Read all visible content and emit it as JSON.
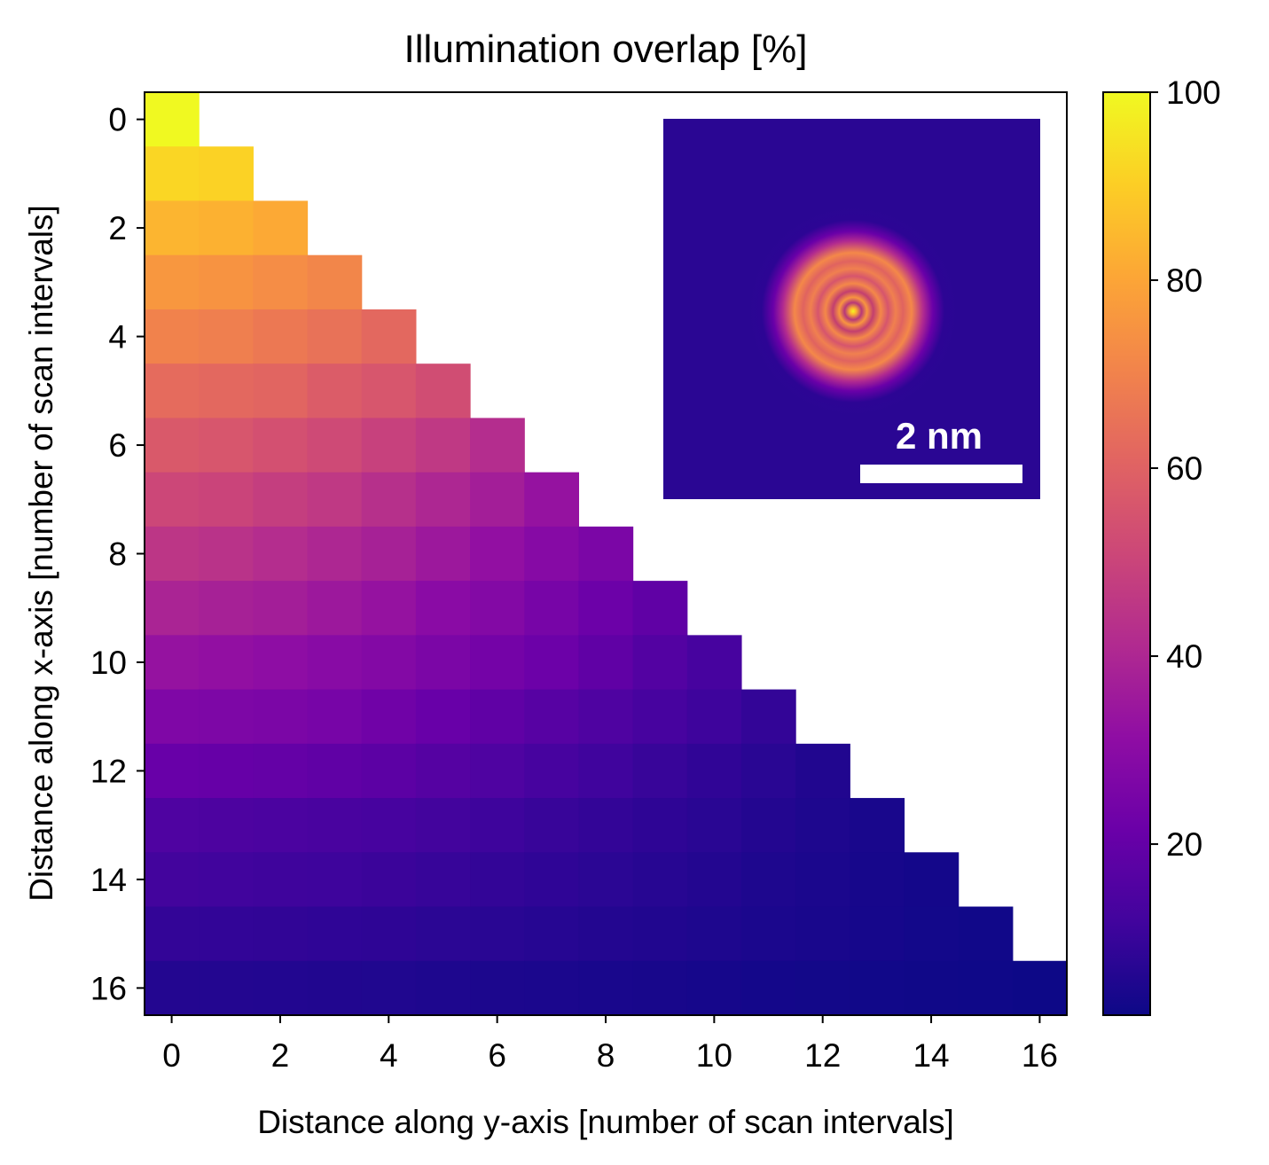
{
  "chart_data": {
    "type": "heatmap",
    "title": "Illumination overlap [%]",
    "xlabel": "Distance along y-axis [number of scan intervals]",
    "ylabel": "Distance along x-axis [number of scan intervals]",
    "x_range": [
      -0.5,
      16.5
    ],
    "y_range": [
      -0.5,
      16.5
    ],
    "y_inverted": true,
    "x_ticks": [
      0,
      2,
      4,
      6,
      8,
      10,
      12,
      14,
      16
    ],
    "y_ticks": [
      0,
      2,
      4,
      6,
      8,
      10,
      12,
      14,
      16
    ],
    "colormap": "plasma",
    "colorbar": {
      "range": [
        1.8,
        100
      ],
      "ticks": [
        20,
        40,
        60,
        80,
        100
      ]
    },
    "description_of_mask": "cells with y-index > x-index are blank (lower-triangular)",
    "rows": [
      [
        100
      ],
      [
        92,
        91
      ],
      [
        84,
        83,
        81
      ],
      [
        76,
        75,
        73,
        71
      ],
      [
        70,
        69,
        67,
        65,
        62
      ],
      [
        63,
        62,
        61,
        58,
        56,
        53
      ],
      [
        57,
        56,
        54,
        52,
        49,
        46,
        42
      ],
      [
        51,
        50,
        48,
        46,
        43,
        40,
        37,
        33
      ],
      [
        45,
        44,
        42,
        40,
        38,
        35,
        32,
        29,
        26
      ],
      [
        39,
        38,
        37,
        35,
        33,
        30,
        28,
        25,
        22,
        19
      ],
      [
        33,
        32,
        31,
        29.5,
        28,
        26,
        24,
        22,
        19,
        16,
        13
      ],
      [
        27,
        26.5,
        26,
        25,
        23,
        21,
        19,
        17,
        15,
        13,
        11,
        9
      ],
      [
        21,
        20.5,
        20,
        19,
        18,
        16.5,
        15,
        13,
        11.5,
        10,
        8.5,
        7,
        5.5
      ],
      [
        15,
        14.5,
        14,
        13.5,
        13,
        12,
        11,
        10,
        9,
        8,
        7,
        6,
        5,
        4
      ],
      [
        12,
        11.7,
        11.3,
        11,
        10.5,
        9.8,
        9,
        8.3,
        7.5,
        6.7,
        5.9,
        5.1,
        4.4,
        3.7,
        3.1
      ],
      [
        9,
        8.8,
        8.6,
        8.3,
        8,
        7.5,
        7,
        6.5,
        6,
        5.5,
        5,
        4.5,
        4,
        3.5,
        3,
        2.5
      ],
      [
        6,
        5.9,
        5.7,
        5.5,
        5.3,
        5,
        4.7,
        4.4,
        4.1,
        3.8,
        3.5,
        3.2,
        2.9,
        2.6,
        2.3,
        2.1,
        1.8
      ]
    ],
    "inset": {
      "content": "probe illumination intensity image (concentric rings)",
      "scalebar_label": "2 nm"
    }
  }
}
